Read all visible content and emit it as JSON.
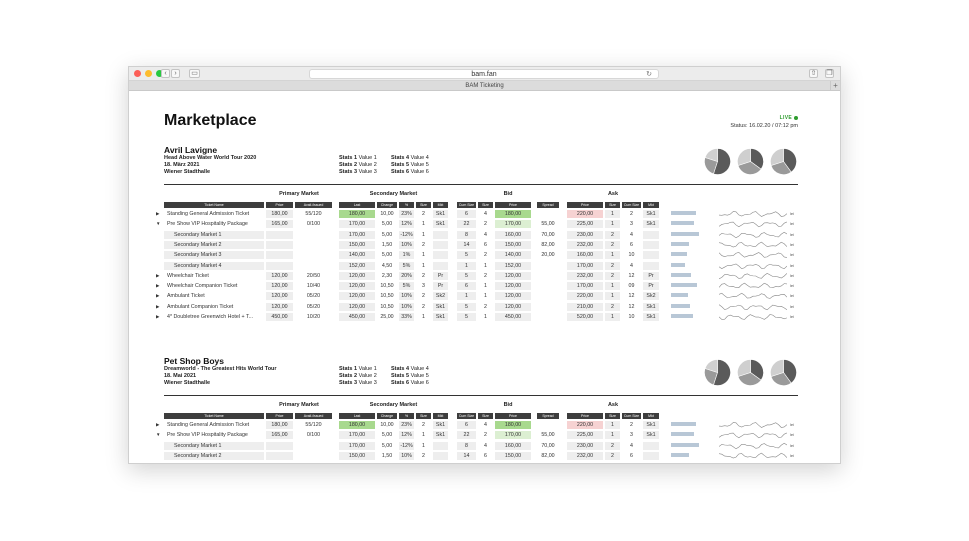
{
  "browser": {
    "url": "bam.fan",
    "tab_title": "BAM Ticketing",
    "plus": "+"
  },
  "page": {
    "title": "Marketplace",
    "live": "LIVE",
    "status": "Status: 16.02.20 / 07:12 pm"
  },
  "columns": {
    "groups": {
      "primary": "Primary Market",
      "secondary": "Secondary Market",
      "bid": "Bid",
      "ask": "Ask"
    },
    "ticket_name": "Ticket Name",
    "price": "Price",
    "avail_issued": "Avail./issued",
    "last": "Last",
    "change": "Change",
    "percent": "%",
    "size": "Size",
    "mkt": "Mkt",
    "cum_size": "Cum Size",
    "size2": "Size",
    "bid_price": "Price",
    "spread": "Spread",
    "ask_price": "Price",
    "ask_size": "Size",
    "ask_cum_size": "Cum Size",
    "ask_mkt": "Mkt"
  },
  "sparkline_label": "lei",
  "colors": {
    "green": "#a8d98e",
    "light_green": "#dcefd2",
    "pink": "#f6d2d2",
    "header": "#3d3d3d",
    "pie_dark": "#5a5a5a",
    "pie_mid": "#9a9a9a",
    "pie_light": "#cfcfcf"
  },
  "events": [
    {
      "artist": "Avril Lavigne",
      "tour": "Head Above Water World Tour 2020",
      "date": "18. März 2021",
      "venue": "Wiener Stadthalle",
      "stats": [
        {
          "k": "Stats 1",
          "v": "Value 1"
        },
        {
          "k": "Stats 4",
          "v": "Value 4"
        },
        {
          "k": "Stats 2",
          "v": "Value 2"
        },
        {
          "k": "Stats 5",
          "v": "Value 5"
        },
        {
          "k": "Stats 3",
          "v": "Value 3"
        },
        {
          "k": "Stats 6",
          "v": "Value 6"
        }
      ],
      "rows": [
        {
          "arrow": "▶",
          "sub": false,
          "name": "Standing General Admission Ticket",
          "price": "180,00",
          "avail": "55/120",
          "last": "180,00",
          "change": "10,00",
          "pct": "23%",
          "size": "2",
          "mkt": "Sk1",
          "cum": "6",
          "bsize": "4",
          "bprice": "180,00",
          "spread": "",
          "aprice": "220,00",
          "asize": "1",
          "acum": "2",
          "amkt": "Sk1",
          "bar": 0.55
        },
        {
          "arrow": "▼",
          "sub": false,
          "name": "Pre Show VIP Hospitality Package",
          "price": "165,00",
          "avail": "0/100",
          "last": "170,00",
          "change": "5,00",
          "pct": "12%",
          "size": "1",
          "mkt": "Sk1",
          "cum": "22",
          "bsize": "2",
          "bprice": "170,00",
          "spread": "55,00",
          "aprice": "225,00",
          "asize": "1",
          "acum": "3",
          "amkt": "Sk1",
          "bar": 0.5
        },
        {
          "arrow": "",
          "sub": true,
          "name": "Secondary Market 1",
          "price": "",
          "avail": "",
          "last": "170,00",
          "change": "5,00",
          "pct": "-12%",
          "size": "1",
          "mkt": "",
          "cum": "8",
          "bsize": "4",
          "bprice": "160,00",
          "spread": "70,00",
          "aprice": "230,00",
          "asize": "2",
          "acum": "4",
          "amkt": "",
          "bar": 0.62
        },
        {
          "arrow": "",
          "sub": true,
          "name": "Secondary Market 2",
          "price": "",
          "avail": "",
          "last": "150,00",
          "change": "1,50",
          "pct": "10%",
          "size": "2",
          "mkt": "",
          "cum": "14",
          "bsize": "6",
          "bprice": "150,00",
          "spread": "82,00",
          "aprice": "232,00",
          "asize": "2",
          "acum": "6",
          "amkt": "",
          "bar": 0.4
        },
        {
          "arrow": "",
          "sub": true,
          "name": "Secondary Market 3",
          "price": "",
          "avail": "",
          "last": "140,00",
          "change": "5,00",
          "pct": "1%",
          "size": "1",
          "mkt": "",
          "cum": "5",
          "bsize": "2",
          "bprice": "140,00",
          "spread": "20,00",
          "aprice": "160,00",
          "asize": "1",
          "acum": "10",
          "amkt": "",
          "bar": 0.35
        },
        {
          "arrow": "",
          "sub": true,
          "name": "Secondary Market 4",
          "price": "",
          "avail": "",
          "last": "152,00",
          "change": "4,50",
          "pct": "5%",
          "size": "1",
          "mkt": "",
          "cum": "1",
          "bsize": "1",
          "bprice": "152,00",
          "spread": "",
          "aprice": "170,00",
          "asize": "2",
          "acum": "4",
          "amkt": "",
          "bar": 0.3
        },
        {
          "arrow": "▶",
          "sub": false,
          "name": "Wheelchair Ticket",
          "price": "120,00",
          "avail": "20/50",
          "last": "120,00",
          "change": "2,30",
          "pct": "20%",
          "size": "2",
          "mkt": "Pr",
          "cum": "5",
          "bsize": "2",
          "bprice": "120,00",
          "spread": "",
          "aprice": "232,00",
          "asize": "2",
          "acum": "12",
          "amkt": "Pr",
          "bar": 0.45
        },
        {
          "arrow": "▶",
          "sub": false,
          "name": "Wheelchair Companion Ticket",
          "price": "120,00",
          "avail": "10/40",
          "last": "120,00",
          "change": "10,50",
          "pct": "5%",
          "size": "3",
          "mkt": "Pr",
          "cum": "6",
          "bsize": "1",
          "bprice": "120,00",
          "spread": "",
          "aprice": "170,00",
          "asize": "1",
          "acum": "09",
          "amkt": "Pr",
          "bar": 0.58
        },
        {
          "arrow": "▶",
          "sub": false,
          "name": "Ambulant Ticket",
          "price": "120,00",
          "avail": "05/20",
          "last": "120,00",
          "change": "10,50",
          "pct": "10%",
          "size": "2",
          "mkt": "Sk2",
          "cum": "1",
          "bsize": "1",
          "bprice": "120,00",
          "spread": "",
          "aprice": "220,00",
          "asize": "1",
          "acum": "12",
          "amkt": "Sk2",
          "bar": 0.38
        },
        {
          "arrow": "▶",
          "sub": false,
          "name": "Ambulant Companion Ticket",
          "price": "120,00",
          "avail": "05/20",
          "last": "120,00",
          "change": "10,50",
          "pct": "10%",
          "size": "2",
          "mkt": "Sk1",
          "cum": "5",
          "bsize": "2",
          "bprice": "120,00",
          "spread": "",
          "aprice": "210,00",
          "asize": "2",
          "acum": "12",
          "amkt": "Sk1",
          "bar": 0.42
        },
        {
          "arrow": "▶",
          "sub": false,
          "name": "4* Doubletree Greenwich Hotel + T...",
          "price": "450,00",
          "avail": "10/20",
          "last": "450,00",
          "change": "25,00",
          "pct": "33%",
          "size": "1",
          "mkt": "Sk1",
          "cum": "5",
          "bsize": "1",
          "bprice": "450,00",
          "spread": "",
          "aprice": "520,00",
          "asize": "1",
          "acum": "10",
          "amkt": "Sk1",
          "bar": 0.48
        }
      ]
    },
    {
      "artist": "Pet Shop Boys",
      "tour": "Dreamworld - The Greatest Hits World Tour",
      "date": "18. Mai 2021",
      "venue": "Wiener Stadthalle",
      "stats": [
        {
          "k": "Stats 1",
          "v": "Value 1"
        },
        {
          "k": "Stats 4",
          "v": "Value 4"
        },
        {
          "k": "Stats 2",
          "v": "Value 2"
        },
        {
          "k": "Stats 5",
          "v": "Value 5"
        },
        {
          "k": "Stats 3",
          "v": "Value 3"
        },
        {
          "k": "Stats 6",
          "v": "Value 6"
        }
      ],
      "rows": [
        {
          "arrow": "▶",
          "sub": false,
          "name": "Standing General Admission Ticket",
          "price": "180,00",
          "avail": "55/120",
          "last": "180,00",
          "change": "10,00",
          "pct": "23%",
          "size": "2",
          "mkt": "Sk1",
          "cum": "6",
          "bsize": "4",
          "bprice": "180,00",
          "spread": "",
          "aprice": "220,00",
          "asize": "1",
          "acum": "2",
          "amkt": "Sk1",
          "bar": 0.55
        },
        {
          "arrow": "▼",
          "sub": false,
          "name": "Pre Show VIP Hospitality Package",
          "price": "165,00",
          "avail": "0/100",
          "last": "170,00",
          "change": "5,00",
          "pct": "12%",
          "size": "1",
          "mkt": "Sk1",
          "cum": "22",
          "bsize": "2",
          "bprice": "170,00",
          "spread": "55,00",
          "aprice": "225,00",
          "asize": "1",
          "acum": "3",
          "amkt": "Sk1",
          "bar": 0.5
        },
        {
          "arrow": "",
          "sub": true,
          "name": "Secondary Market 1",
          "price": "",
          "avail": "",
          "last": "170,00",
          "change": "5,00",
          "pct": "-12%",
          "size": "1",
          "mkt": "",
          "cum": "8",
          "bsize": "4",
          "bprice": "160,00",
          "spread": "70,00",
          "aprice": "230,00",
          "asize": "2",
          "acum": "4",
          "amkt": "",
          "bar": 0.62
        },
        {
          "arrow": "",
          "sub": true,
          "name": "Secondary Market 2",
          "price": "",
          "avail": "",
          "last": "150,00",
          "change": "1,50",
          "pct": "10%",
          "size": "2",
          "mkt": "",
          "cum": "14",
          "bsize": "6",
          "bprice": "150,00",
          "spread": "82,00",
          "aprice": "232,00",
          "asize": "2",
          "acum": "6",
          "amkt": "",
          "bar": 0.4
        }
      ]
    }
  ]
}
